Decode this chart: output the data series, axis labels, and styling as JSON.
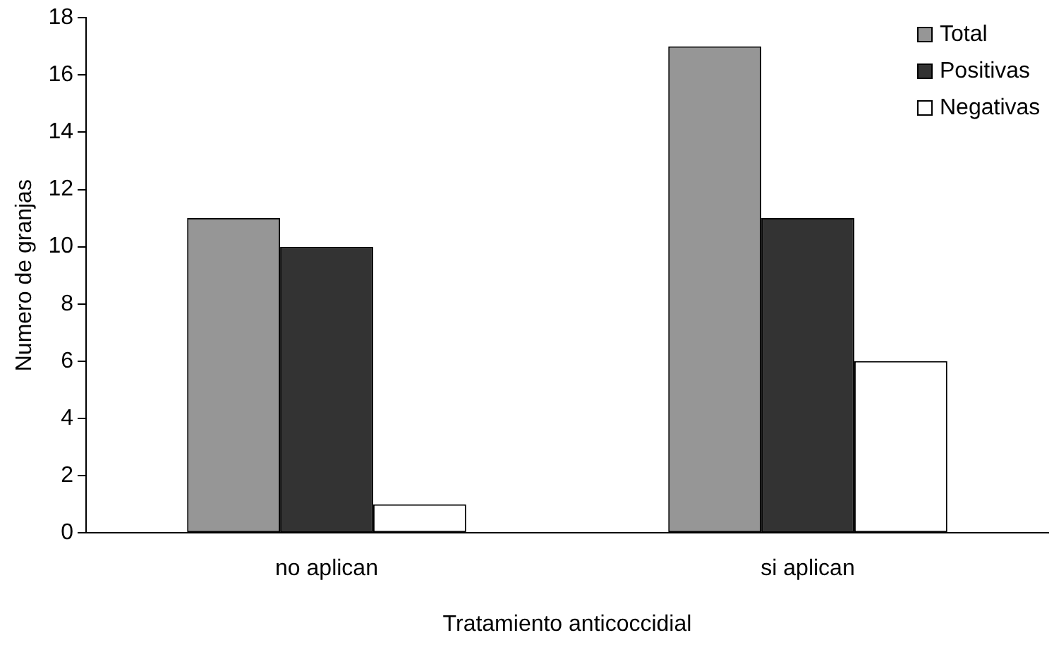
{
  "chart_data": {
    "type": "bar",
    "xlabel": "Tratamiento anticoccidial",
    "ylabel": "Numero de granjas",
    "categories": [
      "no aplican",
      "si aplican"
    ],
    "series": [
      {
        "name": "Total",
        "color": "#969696",
        "values": [
          11,
          17
        ]
      },
      {
        "name": "Positivas",
        "color": "#333333",
        "values": [
          10,
          11
        ]
      },
      {
        "name": "Negativas",
        "color": "#ffffff",
        "values": [
          1,
          6
        ]
      }
    ],
    "ylim": [
      0,
      18
    ],
    "yticks": [
      0,
      2,
      4,
      6,
      8,
      10,
      12,
      14,
      16,
      18
    ],
    "grid": false,
    "legend": "top right"
  }
}
